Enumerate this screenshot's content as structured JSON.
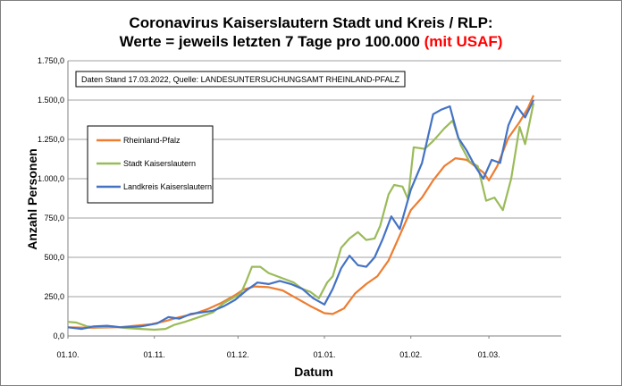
{
  "title_line1": "Coronavirus Kaiserslautern Stadt und Kreis / RLP:",
  "title_line2": "Werte = jeweils letzten 7 Tage pro 100.000",
  "title_highlight": "(mit USAF)",
  "note": "Daten Stand 17.03.2022, Quelle: LANDESUNTERSUCHUNGSAMT RHEINLAND-PFALZ",
  "colors": {
    "rlp": "#ed7d31",
    "stadt": "#9bbb59",
    "landkreis": "#4472c4",
    "highlight": "#ff0000"
  },
  "chart_data": {
    "type": "line",
    "xlabel": "Datum",
    "ylabel": "Anzahl Personen",
    "x_ticks": [
      "01.10.",
      "01.11.",
      "01.12.",
      "01.01.",
      "01.02.",
      "01.03."
    ],
    "y_ticks": [
      "0,0",
      "250,0",
      "500,0",
      "750,0",
      "1.000,0",
      "1.250,0",
      "1.500,0",
      "1.750,0"
    ],
    "ylim": [
      0,
      1750
    ],
    "x_range": [
      "2021-10-01",
      "2022-03-17"
    ],
    "grid": "horizontal",
    "legend_position": "left",
    "series": [
      {
        "name": "Rheinland-Pfalz",
        "color": "#ed7d31",
        "points": [
          [
            "2021-10-01",
            55
          ],
          [
            "2021-10-10",
            52
          ],
          [
            "2021-10-20",
            56
          ],
          [
            "2021-10-31",
            75
          ],
          [
            "2021-11-05",
            95
          ],
          [
            "2021-11-10",
            120
          ],
          [
            "2021-11-15",
            140
          ],
          [
            "2021-11-20",
            170
          ],
          [
            "2021-11-25",
            210
          ],
          [
            "2021-11-30",
            260
          ],
          [
            "2021-12-03",
            295
          ],
          [
            "2021-12-07",
            315
          ],
          [
            "2021-12-12",
            310
          ],
          [
            "2021-12-17",
            290
          ],
          [
            "2021-12-22",
            240
          ],
          [
            "2021-12-27",
            190
          ],
          [
            "2022-01-01",
            145
          ],
          [
            "2022-01-04",
            140
          ],
          [
            "2022-01-08",
            175
          ],
          [
            "2022-01-12",
            270
          ],
          [
            "2022-01-16",
            330
          ],
          [
            "2022-01-20",
            380
          ],
          [
            "2022-01-24",
            480
          ],
          [
            "2022-01-28",
            640
          ],
          [
            "2022-02-01",
            800
          ],
          [
            "2022-02-05",
            880
          ],
          [
            "2022-02-09",
            990
          ],
          [
            "2022-02-13",
            1080
          ],
          [
            "2022-02-17",
            1130
          ],
          [
            "2022-02-21",
            1120
          ],
          [
            "2022-02-24",
            1080
          ],
          [
            "2022-02-27",
            1040
          ],
          [
            "2022-03-01",
            990
          ],
          [
            "2022-03-04",
            1080
          ],
          [
            "2022-03-08",
            1260
          ],
          [
            "2022-03-12",
            1360
          ],
          [
            "2022-03-15",
            1450
          ],
          [
            "2022-03-17",
            1530
          ]
        ]
      },
      {
        "name": "Stadt Kaiserslautern",
        "color": "#9bbb59",
        "points": [
          [
            "2021-10-01",
            90
          ],
          [
            "2021-10-04",
            85
          ],
          [
            "2021-10-08",
            60
          ],
          [
            "2021-10-12",
            55
          ],
          [
            "2021-10-17",
            60
          ],
          [
            "2021-10-22",
            50
          ],
          [
            "2021-10-27",
            45
          ],
          [
            "2021-11-01",
            40
          ],
          [
            "2021-11-05",
            45
          ],
          [
            "2021-11-08",
            70
          ],
          [
            "2021-11-12",
            90
          ],
          [
            "2021-11-17",
            120
          ],
          [
            "2021-11-22",
            150
          ],
          [
            "2021-11-26",
            210
          ],
          [
            "2021-11-29",
            240
          ],
          [
            "2021-12-02",
            270
          ],
          [
            "2021-12-04",
            350
          ],
          [
            "2021-12-06",
            440
          ],
          [
            "2021-12-09",
            440
          ],
          [
            "2021-12-12",
            400
          ],
          [
            "2021-12-15",
            380
          ],
          [
            "2021-12-18",
            360
          ],
          [
            "2021-12-21",
            340
          ],
          [
            "2021-12-24",
            300
          ],
          [
            "2021-12-27",
            280
          ],
          [
            "2021-12-30",
            240
          ],
          [
            "2022-01-02",
            340
          ],
          [
            "2022-01-04",
            380
          ],
          [
            "2022-01-07",
            560
          ],
          [
            "2022-01-10",
            620
          ],
          [
            "2022-01-13",
            660
          ],
          [
            "2022-01-16",
            610
          ],
          [
            "2022-01-19",
            620
          ],
          [
            "2022-01-21",
            700
          ],
          [
            "2022-01-24",
            900
          ],
          [
            "2022-01-26",
            960
          ],
          [
            "2022-01-29",
            950
          ],
          [
            "2022-01-31",
            870
          ],
          [
            "2022-02-02",
            1200
          ],
          [
            "2022-02-06",
            1190
          ],
          [
            "2022-02-09",
            1240
          ],
          [
            "2022-02-13",
            1320
          ],
          [
            "2022-02-16",
            1370
          ],
          [
            "2022-02-19",
            1210
          ],
          [
            "2022-02-22",
            1110
          ],
          [
            "2022-02-25",
            1080
          ],
          [
            "2022-02-28",
            860
          ],
          [
            "2022-03-03",
            880
          ],
          [
            "2022-03-06",
            800
          ],
          [
            "2022-03-09",
            1000
          ],
          [
            "2022-03-12",
            1330
          ],
          [
            "2022-03-14",
            1220
          ],
          [
            "2022-03-17",
            1480
          ]
        ]
      },
      {
        "name": "Landkreis Kaiserslautern",
        "color": "#4472c4",
        "points": [
          [
            "2021-10-01",
            55
          ],
          [
            "2021-10-06",
            45
          ],
          [
            "2021-10-10",
            60
          ],
          [
            "2021-10-15",
            65
          ],
          [
            "2021-10-20",
            55
          ],
          [
            "2021-10-27",
            60
          ],
          [
            "2021-11-02",
            80
          ],
          [
            "2021-11-06",
            120
          ],
          [
            "2021-11-10",
            110
          ],
          [
            "2021-11-14",
            140
          ],
          [
            "2021-11-18",
            150
          ],
          [
            "2021-11-22",
            160
          ],
          [
            "2021-11-26",
            190
          ],
          [
            "2021-11-30",
            230
          ],
          [
            "2021-12-04",
            290
          ],
          [
            "2021-12-08",
            340
          ],
          [
            "2021-12-12",
            330
          ],
          [
            "2021-12-16",
            350
          ],
          [
            "2021-12-20",
            330
          ],
          [
            "2021-12-24",
            300
          ],
          [
            "2021-12-28",
            240
          ],
          [
            "2022-01-01",
            200
          ],
          [
            "2022-01-04",
            300
          ],
          [
            "2022-01-07",
            430
          ],
          [
            "2022-01-10",
            510
          ],
          [
            "2022-01-13",
            450
          ],
          [
            "2022-01-16",
            440
          ],
          [
            "2022-01-19",
            500
          ],
          [
            "2022-01-22",
            620
          ],
          [
            "2022-01-25",
            760
          ],
          [
            "2022-01-28",
            680
          ],
          [
            "2022-02-01",
            930
          ],
          [
            "2022-02-05",
            1100
          ],
          [
            "2022-02-09",
            1410
          ],
          [
            "2022-02-12",
            1440
          ],
          [
            "2022-02-15",
            1460
          ],
          [
            "2022-02-18",
            1260
          ],
          [
            "2022-02-21",
            1180
          ],
          [
            "2022-02-24",
            1080
          ],
          [
            "2022-02-27",
            1000
          ],
          [
            "2022-03-02",
            1120
          ],
          [
            "2022-03-05",
            1100
          ],
          [
            "2022-03-08",
            1340
          ],
          [
            "2022-03-11",
            1460
          ],
          [
            "2022-03-14",
            1390
          ],
          [
            "2022-03-17",
            1500
          ]
        ]
      }
    ]
  }
}
